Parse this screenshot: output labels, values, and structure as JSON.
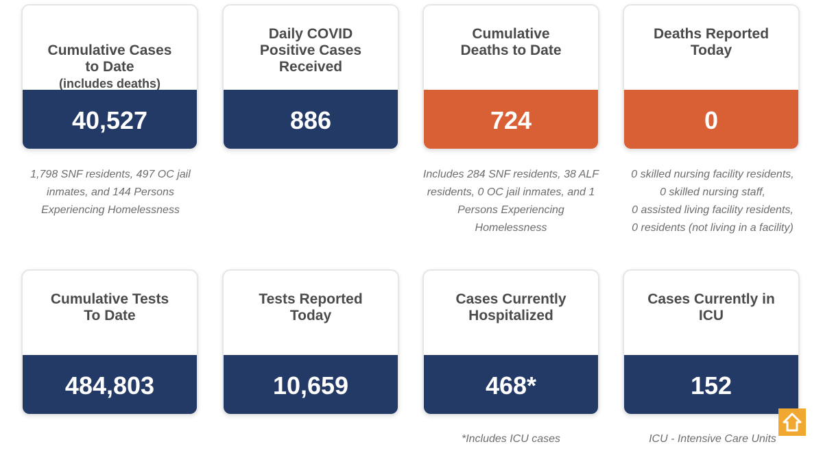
{
  "colors": {
    "navy": "#233966",
    "orange": "#d95f34",
    "title_text": "#4a4a4a",
    "note_text": "#6d6d6d",
    "scroll_button": "#f0a830"
  },
  "cards": [
    {
      "title": "Cumulative Cases\nto Date",
      "subtitle": "(includes deaths)",
      "value": "40,527",
      "note": "1,798 SNF residents, 497 OC jail\ninmates, and 144 Persons\nExperiencing Homelessness"
    },
    {
      "title": "Daily COVID\nPositive Cases\nReceived",
      "value": "886",
      "note": ""
    },
    {
      "title": "Cumulative\nDeaths to Date",
      "value": "724",
      "note": "Includes 284 SNF residents, 38 ALF\nresidents, 0 OC jail inmates, and 1\nPersons Experiencing\nHomelessness"
    },
    {
      "title": "Deaths Reported\nToday",
      "value": "0",
      "note": "0 skilled nursing facility residents,\n0 skilled nursing staff,\n0 assisted living facility residents,\n0 residents (not living in a facility)"
    },
    {
      "title": "Cumulative Tests\nTo Date",
      "value": "484,803",
      "note": ""
    },
    {
      "title": "Tests Reported\nToday",
      "value": "10,659",
      "note": ""
    },
    {
      "title": "Cases Currently\nHospitalized",
      "value": "468*",
      "note": "*Includes ICU cases"
    },
    {
      "title": "Cases Currently in\nICU",
      "value": "152",
      "note": "ICU - Intensive Care Units"
    }
  ],
  "scroll_top": {
    "icon": "arrow-up-icon"
  }
}
